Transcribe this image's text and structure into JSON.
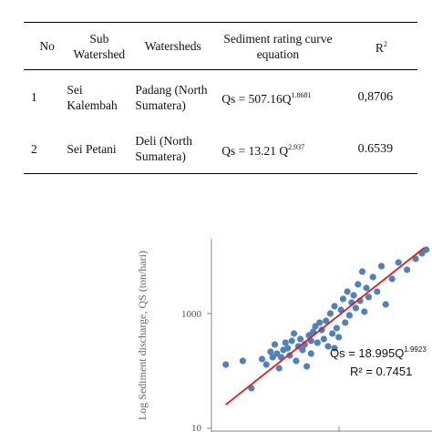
{
  "table": {
    "headers": {
      "no": "No",
      "sub_watershed": "Sub Watershed",
      "watersheds": "Watersheds",
      "equation": "Sediment rating curve equation",
      "r2_base": "R",
      "r2_sup": "2"
    },
    "rows": [
      {
        "no": "1",
        "sub": "Sei Kalembah",
        "watershed": "Padang (North Sumatera)",
        "eq_base": "Qs = 507.16Q",
        "eq_exp": "1.8681",
        "r2": "0,8706"
      },
      {
        "no": "2",
        "sub": "Sei Petani",
        "watershed": "Deli (North Sumatera)",
        "eq_base": "Qs = 13.21 Q",
        "eq_exp": "2.937",
        "r2": "0.6539"
      }
    ]
  },
  "chart_data": {
    "type": "scatter",
    "ylabel": "Log Sediment discharge, QS (ton/hari)",
    "yscale": "log",
    "ytick_labels": [
      "10",
      "1000"
    ],
    "equation_base": "Qs = 18.995Q",
    "equation_exp": "1.9923",
    "r2_text": "R² = 0.7451",
    "colors": {
      "points": "#4f81bd",
      "trend": "#e31a1c",
      "axis": "#888888"
    },
    "points_xy": [
      [
        0.05,
        0.34
      ],
      [
        0.13,
        0.36
      ],
      [
        0.17,
        0.21
      ],
      [
        0.22,
        0.37
      ],
      [
        0.24,
        0.34
      ],
      [
        0.26,
        0.41
      ],
      [
        0.27,
        0.38
      ],
      [
        0.28,
        0.45
      ],
      [
        0.29,
        0.4
      ],
      [
        0.31,
        0.38
      ],
      [
        0.32,
        0.42
      ],
      [
        0.33,
        0.46
      ],
      [
        0.34,
        0.43
      ],
      [
        0.35,
        0.39
      ],
      [
        0.36,
        0.47
      ],
      [
        0.37,
        0.51
      ],
      [
        0.38,
        0.36
      ],
      [
        0.39,
        0.44
      ],
      [
        0.4,
        0.48
      ],
      [
        0.41,
        0.42
      ],
      [
        0.42,
        0.45
      ],
      [
        0.43,
        0.33
      ],
      [
        0.44,
        0.5
      ],
      [
        0.45,
        0.47
      ],
      [
        0.46,
        0.52
      ],
      [
        0.47,
        0.55
      ],
      [
        0.48,
        0.46
      ],
      [
        0.49,
        0.57
      ],
      [
        0.5,
        0.53
      ],
      [
        0.51,
        0.48
      ],
      [
        0.52,
        0.58
      ],
      [
        0.53,
        0.44
      ],
      [
        0.54,
        0.62
      ],
      [
        0.55,
        0.51
      ],
      [
        0.56,
        0.66
      ],
      [
        0.57,
        0.54
      ],
      [
        0.58,
        0.49
      ],
      [
        0.59,
        0.64
      ],
      [
        0.6,
        0.7
      ],
      [
        0.61,
        0.57
      ],
      [
        0.62,
        0.74
      ],
      [
        0.63,
        0.61
      ],
      [
        0.64,
        0.68
      ],
      [
        0.65,
        0.72
      ],
      [
        0.66,
        0.65
      ],
      [
        0.67,
        0.78
      ],
      [
        0.68,
        0.69
      ],
      [
        0.69,
        0.85
      ],
      [
        0.7,
        0.63
      ],
      [
        0.71,
        0.76
      ],
      [
        0.72,
        0.71
      ],
      [
        0.74,
        0.82
      ],
      [
        0.76,
        0.74
      ],
      [
        0.78,
        0.88
      ],
      [
        0.8,
        0.67
      ],
      [
        0.83,
        0.81
      ],
      [
        0.86,
        0.9
      ],
      [
        0.9,
        0.86
      ],
      [
        0.94,
        0.92
      ],
      [
        0.97,
        0.95
      ],
      [
        0.99,
        0.97
      ],
      [
        0.3,
        0.32
      ],
      [
        0.45,
        0.4
      ],
      [
        0.56,
        0.43
      ]
    ],
    "trend_xy": [
      [
        0.05,
        0.12
      ],
      [
        0.98,
        0.98
      ]
    ]
  }
}
